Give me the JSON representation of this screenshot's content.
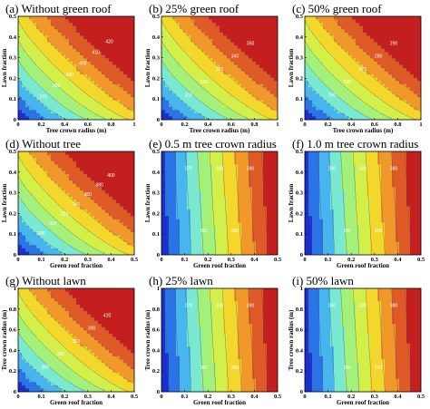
{
  "palette": [
    "#1a2fcf",
    "#2b74e8",
    "#47b6ee",
    "#7ae9d2",
    "#a3f07a",
    "#d3ef4a",
    "#f3d72a",
    "#f0992a",
    "#de5a26",
    "#c41f1f"
  ],
  "chart_data": [
    {
      "type": "heatmap",
      "title": "(a) Without green roof",
      "xlabel": "Tree crown radius (m)",
      "ylabel": "Lawn fraction",
      "xlim": [
        0,
        1
      ],
      "ylim": [
        0,
        0.5
      ],
      "xticks": [
        "0",
        "0.2",
        "0.4",
        "0.6",
        "0.8",
        "1"
      ],
      "yticks": [
        "0",
        "0.1",
        "0.2",
        "0.3",
        "0.4",
        "0.5"
      ],
      "direction": "diagonal",
      "contour_labels": [
        "370",
        "380",
        "390",
        "400",
        "410",
        "420"
      ]
    },
    {
      "type": "heatmap",
      "title": "(b) 25% green roof",
      "xlabel": "Tree crown radius (m)",
      "ylabel": "Lawn fraction",
      "xlim": [
        0,
        1
      ],
      "ylim": [
        0,
        0.5
      ],
      "xticks": [
        "0",
        "0.2",
        "0.4",
        "0.6",
        "0.8",
        "1"
      ],
      "yticks": [
        "0",
        "0.1",
        "0.2",
        "0.3",
        "0.4",
        "0.5"
      ],
      "direction": "diagonal",
      "contour_labels": [
        "310",
        "320",
        "330",
        "340",
        "350"
      ]
    },
    {
      "type": "heatmap",
      "title": "(c) 50% green roof",
      "xlabel": "Tree crown radius (m)",
      "ylabel": "Lawn fraction",
      "xlim": [
        0,
        1
      ],
      "ylim": [
        0,
        0.5
      ],
      "xticks": [
        "0",
        "0.2",
        "0.4",
        "0.6",
        "0.8",
        "1"
      ],
      "yticks": [
        "0",
        "0.1",
        "0.2",
        "0.3",
        "0.4",
        "0.5"
      ],
      "direction": "diagonal",
      "contour_labels": [
        "250",
        "260",
        "270",
        "280",
        "290"
      ]
    },
    {
      "type": "heatmap",
      "title": "(d) Without tree",
      "xlabel": "Green roof fraction",
      "ylabel": "Lawn fraction",
      "xlim": [
        0,
        0.5
      ],
      "ylim": [
        0,
        0.5
      ],
      "xticks": [
        "0",
        "0.1",
        "0.2",
        "0.3",
        "0.4",
        "0.5"
      ],
      "yticks": [
        "0",
        "0.1",
        "0.2",
        "0.3",
        "0.4",
        "0.5"
      ],
      "direction": "diagonal",
      "contour_labels": [
        "280",
        "300",
        "320",
        "340",
        "360",
        "380",
        "400"
      ]
    },
    {
      "type": "heatmap",
      "title": "(e) 0.5 m tree crown radius",
      "xlabel": "Green roof fraction",
      "ylabel": "Lawn fraction",
      "xlim": [
        0,
        0.5
      ],
      "ylim": [
        0,
        0.5
      ],
      "xticks": [
        "0",
        "0.1",
        "0.2",
        "0.3",
        "0.4",
        "0.5"
      ],
      "yticks": [
        "0",
        "0.1",
        "0.2",
        "0.3",
        "0.4",
        "0.5"
      ],
      "direction": "horizontal",
      "contour_labels": [
        "270",
        "300",
        "330",
        "360",
        "390"
      ]
    },
    {
      "type": "heatmap",
      "title": "(f) 1.0 m tree crown radius",
      "xlabel": "Green roof fraction",
      "ylabel": "Lawn fraction",
      "xlim": [
        0,
        0.5
      ],
      "ylim": [
        0,
        0.5
      ],
      "xticks": [
        "0",
        "0.1",
        "0.2",
        "0.3",
        "0.4",
        "0.5"
      ],
      "yticks": [
        "0",
        "0.1",
        "0.2",
        "0.3",
        "0.4",
        "0.5"
      ],
      "direction": "horizontal",
      "contour_labels": [
        "260",
        "290",
        "320",
        "350",
        "380"
      ]
    },
    {
      "type": "heatmap",
      "title": "(g) Without lawn",
      "xlabel": "Green roof fraction",
      "ylabel": "Tree crown radius (m)",
      "xlim": [
        0,
        0.5
      ],
      "ylim": [
        0,
        1
      ],
      "xticks": [
        "0",
        "0.1",
        "0.2",
        "0.3",
        "0.4",
        "0.5"
      ],
      "yticks": [
        "0",
        "0.2",
        "0.4",
        "0.6",
        "0.8",
        "1"
      ],
      "direction": "diagonal",
      "contour_labels": [
        "300",
        "330",
        "360",
        "390",
        "420"
      ]
    },
    {
      "type": "heatmap",
      "title": "(h) 25% lawn",
      "xlabel": "Green roof fraction",
      "ylabel": "Tree crown radius (m)",
      "xlim": [
        0,
        0.5
      ],
      "ylim": [
        0,
        1
      ],
      "xticks": [
        "0",
        "0.1",
        "0.2",
        "0.3",
        "0.4",
        "0.5"
      ],
      "yticks": [
        "0",
        "0.2",
        "0.4",
        "0.6",
        "0.8",
        "1"
      ],
      "direction": "horizontal",
      "contour_labels": [
        "270",
        "300",
        "330",
        "360",
        "390"
      ]
    },
    {
      "type": "heatmap",
      "title": "(i) 50% lawn",
      "xlabel": "Green roof fraction",
      "ylabel": "Tree crown radius (m)",
      "xlim": [
        0,
        0.5
      ],
      "ylim": [
        0,
        1
      ],
      "xticks": [
        "0",
        "0.1",
        "0.2",
        "0.3",
        "0.4",
        "0.5"
      ],
      "yticks": [
        "0",
        "0.2",
        "0.4",
        "0.6",
        "0.8",
        "1"
      ],
      "direction": "horizontal",
      "contour_labels": [
        "260",
        "290",
        "320",
        "350",
        "380"
      ]
    }
  ]
}
